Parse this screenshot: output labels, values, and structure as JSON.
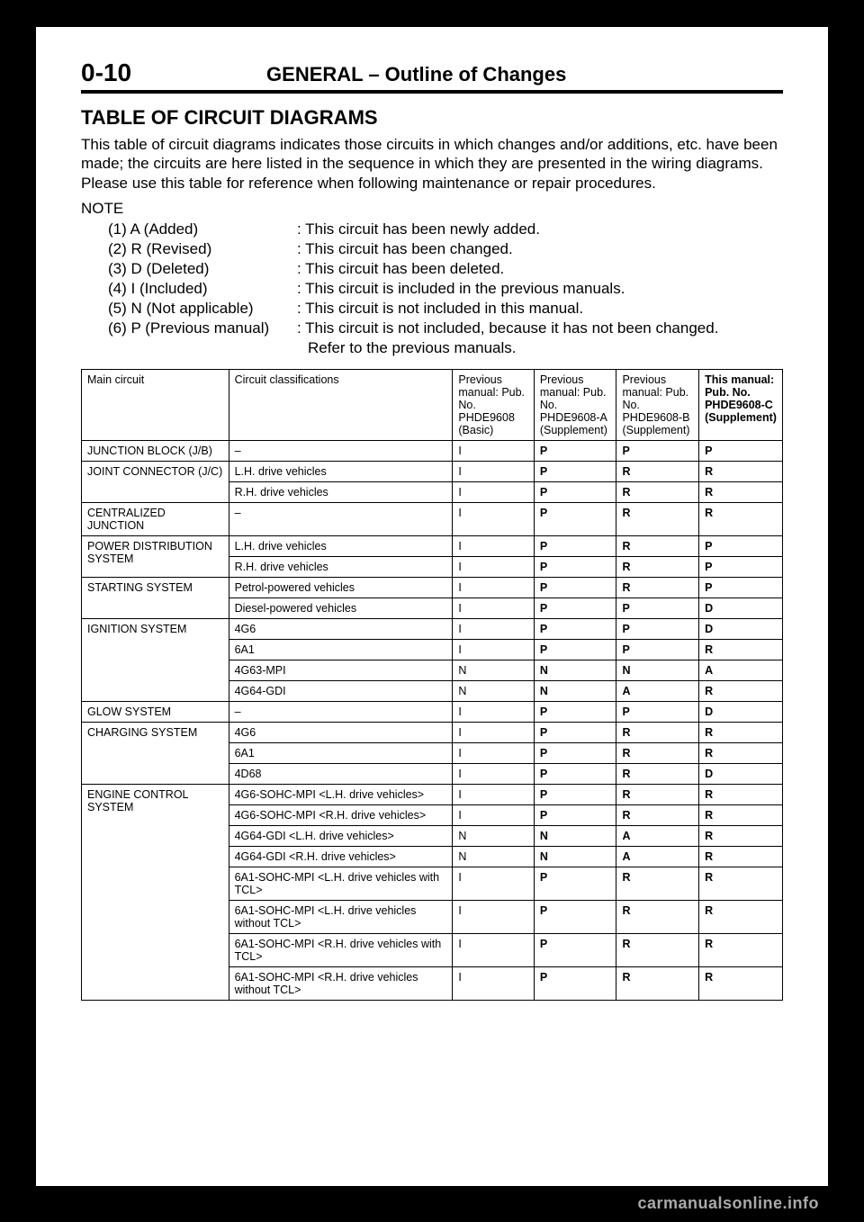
{
  "page_number": "0-10",
  "header": "GENERAL – Outline of Changes",
  "section_title": "TABLE OF CIRCUIT DIAGRAMS",
  "intro": "This table of circuit diagrams indicates those circuits in which changes and/or additions, etc. have been made; the circuits are here listed in the sequence in which they are presented in the wiring diagrams. Please use this table for reference when following maintenance or repair procedures.",
  "note_label": "NOTE",
  "notes": [
    {
      "key": "(1)  A  (Added)",
      "val": ": This circuit has been newly added."
    },
    {
      "key": "(2)  R  (Revised)",
      "val": ": This circuit has been changed."
    },
    {
      "key": "(3)  D  (Deleted)",
      "val": ": This circuit has been deleted."
    },
    {
      "key": "(4)  I   (Included)",
      "val": ": This circuit is included in the previous manuals."
    },
    {
      "key": "(5)  N  (Not applicable)",
      "val": ": This circuit is not included in this manual."
    },
    {
      "key": "(6)  P  (Previous manual)",
      "val": ": This circuit is not included, because it has not been changed."
    }
  ],
  "note_cont": "Refer to the previous manuals.",
  "columns": [
    "Main circuit",
    "Circuit classifications",
    "Previous manual: Pub. No. PHDE9608 (Basic)",
    "Previous manual: Pub. No. PHDE9608-A (Supplement)",
    "Previous manual: Pub. No. PHDE9608-B (Supplement)",
    "This manual: Pub. No. PHDE9608-C (Supplement)"
  ],
  "col_bold": [
    false,
    false,
    false,
    false,
    false,
    true
  ],
  "rows": [
    {
      "main": "JUNCTION BLOCK (J/B)",
      "class": "–",
      "c1": "I",
      "c2": "P",
      "c3": "P",
      "c4": "P",
      "b4": true,
      "first": true
    },
    {
      "main": "JOINT CONNECTOR (J/C)",
      "class": "L.H. drive vehicles",
      "c1": "I",
      "c2": "P",
      "c3": "R",
      "c4": "R",
      "b4": true,
      "first": true
    },
    {
      "main": "",
      "class": "R.H. drive vehicles",
      "c1": "I",
      "c2": "P",
      "c3": "R",
      "c4": "R",
      "b4": true
    },
    {
      "main": "CENTRALIZED JUNCTION",
      "class": "–",
      "c1": "I",
      "c2": "P",
      "c3": "R",
      "c4": "R",
      "b4": true,
      "first": true
    },
    {
      "main": "POWER DISTRIBUTION SYSTEM",
      "class": "L.H. drive vehicles",
      "c1": "I",
      "c2": "P",
      "c3": "R",
      "c4": "P",
      "b4": true,
      "first": true
    },
    {
      "main": "",
      "class": "R.H. drive vehicles",
      "c1": "I",
      "c2": "P",
      "c3": "R",
      "c4": "P",
      "b4": true
    },
    {
      "main": "STARTING SYSTEM",
      "class": "Petrol-powered vehicles",
      "c1": "I",
      "c2": "P",
      "c3": "R",
      "c4": "P",
      "b4": true,
      "first": true
    },
    {
      "main": "",
      "class": "Diesel-powered vehicles",
      "c1": "I",
      "c2": "P",
      "c3": "P",
      "c4": "D",
      "b4": true
    },
    {
      "main": "IGNITION SYSTEM",
      "class": "4G6",
      "c1": "I",
      "c2": "P",
      "c3": "P",
      "c4": "D",
      "b4": true,
      "first": true
    },
    {
      "main": "",
      "class": "6A1",
      "c1": "I",
      "c2": "P",
      "c3": "P",
      "c4": "R",
      "b4": true
    },
    {
      "main": "",
      "class": "4G63-MPI",
      "c1": "N",
      "c2": "N",
      "c3": "N",
      "c4": "A",
      "b4": true
    },
    {
      "main": "",
      "class": "4G64-GDI",
      "c1": "N",
      "c2": "N",
      "c3": "A",
      "c4": "R",
      "b4": true
    },
    {
      "main": "GLOW SYSTEM",
      "class": "–",
      "c1": "I",
      "c2": "P",
      "c3": "P",
      "c4": "D",
      "b4": true,
      "first": true
    },
    {
      "main": "CHARGING SYSTEM",
      "class": "4G6",
      "c1": "I",
      "c2": "P",
      "c3": "R",
      "c4": "R",
      "b4": true,
      "first": true
    },
    {
      "main": "",
      "class": "6A1",
      "c1": "I",
      "c2": "P",
      "c3": "R",
      "c4": "R",
      "b4": true
    },
    {
      "main": "",
      "class": "4D68",
      "c1": "I",
      "c2": "P",
      "c3": "R",
      "c4": "D",
      "b4": true
    },
    {
      "main": "ENGINE CONTROL SYSTEM",
      "class": "4G6-SOHC-MPI <L.H. drive vehicles>",
      "c1": "I",
      "c2": "P",
      "c3": "R",
      "c4": "R",
      "b4": true,
      "first": true
    },
    {
      "main": "",
      "class": "4G6-SOHC-MPI <R.H. drive vehicles>",
      "c1": "I",
      "c2": "P",
      "c3": "R",
      "c4": "R",
      "b4": true
    },
    {
      "main": "",
      "class": "4G64-GDI <L.H. drive vehicles>",
      "c1": "N",
      "c2": "N",
      "c3": "A",
      "c4": "R",
      "b4": true
    },
    {
      "main": "",
      "class": "4G64-GDI <R.H. drive vehicles>",
      "c1": "N",
      "c2": "N",
      "c3": "A",
      "c4": "R",
      "b4": true
    },
    {
      "main": "",
      "class": "6A1-SOHC-MPI <L.H. drive vehicles with TCL>",
      "c1": "I",
      "c2": "P",
      "c3": "R",
      "c4": "R",
      "b4": true
    },
    {
      "main": "",
      "class": "6A1-SOHC-MPI <L.H. drive vehicles without TCL>",
      "c1": "I",
      "c2": "P",
      "c3": "R",
      "c4": "R",
      "b4": true
    },
    {
      "main": "",
      "class": "6A1-SOHC-MPI <R.H. drive vehicles with TCL>",
      "c1": "I",
      "c2": "P",
      "c3": "R",
      "c4": "R",
      "b4": true
    },
    {
      "main": "",
      "class": "6A1-SOHC-MPI <R.H. drive vehicles without TCL>",
      "c1": "I",
      "c2": "P",
      "c3": "R",
      "c4": "R",
      "b4": true
    }
  ],
  "watermark": "carmanualsonline.info",
  "colors": {
    "page_bg": "#ffffff",
    "outer_bg": "#000000",
    "text": "#000000",
    "watermark": "#aaaaaa"
  }
}
